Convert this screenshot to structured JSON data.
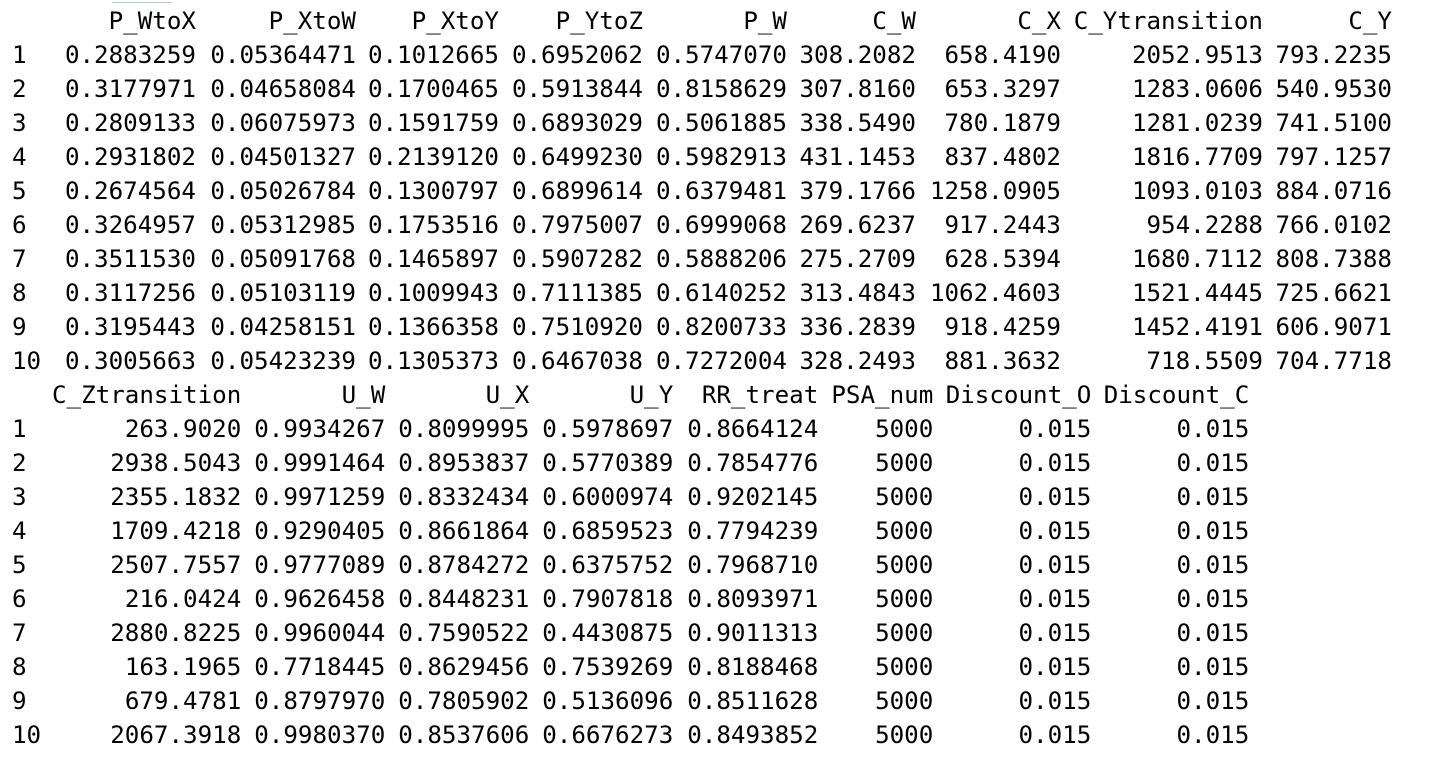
{
  "block1": {
    "columns": [
      "P_WtoX",
      "P_XtoW",
      "P_XtoY",
      "P_YtoZ",
      "P_W",
      "C_W",
      "C_X",
      "C_Ytransition",
      "C_Y"
    ],
    "rows": [
      {
        "name": "1",
        "values": [
          "0.2883259",
          "0.05364471",
          "0.1012665",
          "0.6952062",
          "0.5747070",
          "308.2082",
          "658.4190",
          "2052.9513",
          "793.2235"
        ]
      },
      {
        "name": "2",
        "values": [
          "0.3177971",
          "0.04658084",
          "0.1700465",
          "0.5913844",
          "0.8158629",
          "307.8160",
          "653.3297",
          "1283.0606",
          "540.9530"
        ]
      },
      {
        "name": "3",
        "values": [
          "0.2809133",
          "0.06075973",
          "0.1591759",
          "0.6893029",
          "0.5061885",
          "338.5490",
          "780.1879",
          "1281.0239",
          "741.5100"
        ]
      },
      {
        "name": "4",
        "values": [
          "0.2931802",
          "0.04501327",
          "0.2139120",
          "0.6499230",
          "0.5982913",
          "431.1453",
          "837.4802",
          "1816.7709",
          "797.1257"
        ]
      },
      {
        "name": "5",
        "values": [
          "0.2674564",
          "0.05026784",
          "0.1300797",
          "0.6899614",
          "0.6379481",
          "379.1766",
          "1258.0905",
          "1093.0103",
          "884.0716"
        ]
      },
      {
        "name": "6",
        "values": [
          "0.3264957",
          "0.05312985",
          "0.1753516",
          "0.7975007",
          "0.6999068",
          "269.6237",
          "917.2443",
          "954.2288",
          "766.0102"
        ]
      },
      {
        "name": "7",
        "values": [
          "0.3511530",
          "0.05091768",
          "0.1465897",
          "0.5907282",
          "0.5888206",
          "275.2709",
          "628.5394",
          "1680.7112",
          "808.7388"
        ]
      },
      {
        "name": "8",
        "values": [
          "0.3117256",
          "0.05103119",
          "0.1009943",
          "0.7111385",
          "0.6140252",
          "313.4843",
          "1062.4603",
          "1521.4445",
          "725.6621"
        ]
      },
      {
        "name": "9",
        "values": [
          "0.3195443",
          "0.04258151",
          "0.1366358",
          "0.7510920",
          "0.8200733",
          "336.2839",
          "918.4259",
          "1452.4191",
          "606.9071"
        ]
      },
      {
        "name": "10",
        "values": [
          "0.3005663",
          "0.05423239",
          "0.1305373",
          "0.6467038",
          "0.7272004",
          "328.2493",
          "881.3632",
          "718.5509",
          "704.7718"
        ]
      }
    ]
  },
  "block2": {
    "columns": [
      "C_Ztransition",
      "U_W",
      "U_X",
      "U_Y",
      "RR_treat",
      "PSA_num",
      "Discount_O",
      "Discount_C"
    ],
    "rows": [
      {
        "name": "1",
        "values": [
          "263.9020",
          "0.9934267",
          "0.8099995",
          "0.5978697",
          "0.8664124",
          "5000",
          "0.015",
          "0.015"
        ]
      },
      {
        "name": "2",
        "values": [
          "2938.5043",
          "0.9991464",
          "0.8953837",
          "0.5770389",
          "0.7854776",
          "5000",
          "0.015",
          "0.015"
        ]
      },
      {
        "name": "3",
        "values": [
          "2355.1832",
          "0.9971259",
          "0.8332434",
          "0.6000974",
          "0.9202145",
          "5000",
          "0.015",
          "0.015"
        ]
      },
      {
        "name": "4",
        "values": [
          "1709.4218",
          "0.9290405",
          "0.8661864",
          "0.6859523",
          "0.7794239",
          "5000",
          "0.015",
          "0.015"
        ]
      },
      {
        "name": "5",
        "values": [
          "2507.7557",
          "0.9777089",
          "0.8784272",
          "0.6375752",
          "0.7968710",
          "5000",
          "0.015",
          "0.015"
        ]
      },
      {
        "name": "6",
        "values": [
          "216.0424",
          "0.9626458",
          "0.8448231",
          "0.7907818",
          "0.8093971",
          "5000",
          "0.015",
          "0.015"
        ]
      },
      {
        "name": "7",
        "values": [
          "2880.8225",
          "0.9960044",
          "0.7590522",
          "0.4430875",
          "0.9011313",
          "5000",
          "0.015",
          "0.015"
        ]
      },
      {
        "name": "8",
        "values": [
          "163.1965",
          "0.7718445",
          "0.8629456",
          "0.7539269",
          "0.8188468",
          "5000",
          "0.015",
          "0.015"
        ]
      },
      {
        "name": "9",
        "values": [
          "679.4781",
          "0.8797970",
          "0.7805902",
          "0.5136096",
          "0.8511628",
          "5000",
          "0.015",
          "0.015"
        ]
      },
      {
        "name": "10",
        "values": [
          "2067.3918",
          "0.9980370",
          "0.8537606",
          "0.6676273",
          "0.8493852",
          "5000",
          "0.015",
          "0.015"
        ]
      }
    ]
  }
}
